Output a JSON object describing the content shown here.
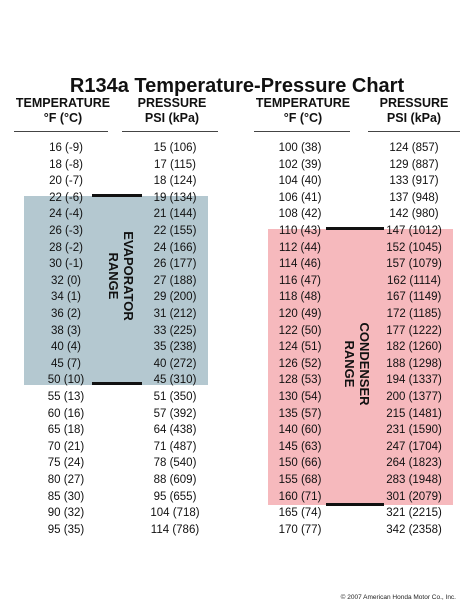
{
  "title": "R134a Temperature-Pressure Chart",
  "headers": {
    "temp_label": "TEMPERATURE",
    "temp_units": "°F (°C)",
    "press_label": "PRESSURE",
    "press_units": "PSI (kPa)"
  },
  "evaporator_label": "EVAPORATOR\nRANGE",
  "condenser_label": "CONDENSER\nRANGE",
  "colors": {
    "evaporator_band": "#b4c8d0",
    "condenser_band": "#f6b9bd"
  },
  "left_table": [
    [
      "16 (-9)",
      "15 (106)"
    ],
    [
      "18 (-8)",
      "17 (115)"
    ],
    [
      "20 (-7)",
      "18 (124)"
    ],
    [
      "22 (-6)",
      "19 (134)"
    ],
    [
      "24 (-4)",
      "21 (144)"
    ],
    [
      "26 (-3)",
      "22 (155)"
    ],
    [
      "28 (-2)",
      "24 (166)"
    ],
    [
      "30 (-1)",
      "26 (177)"
    ],
    [
      "32 (0)",
      "27 (188)"
    ],
    [
      "34 (1)",
      "29 (200)"
    ],
    [
      "36 (2)",
      "31 (212)"
    ],
    [
      "38 (3)",
      "33 (225)"
    ],
    [
      "40 (4)",
      "35 (238)"
    ],
    [
      "45 (7)",
      "40 (272)"
    ],
    [
      "50 (10)",
      "45 (310)"
    ],
    [
      "55 (13)",
      "51 (350)"
    ],
    [
      "60 (16)",
      "57 (392)"
    ],
    [
      "65 (18)",
      "64 (438)"
    ],
    [
      "70 (21)",
      "71 (487)"
    ],
    [
      "75 (24)",
      "78 (540)"
    ],
    [
      "80 (27)",
      "88 (609)"
    ],
    [
      "85 (30)",
      "95 (655)"
    ],
    [
      "90 (32)",
      "104 (718)"
    ],
    [
      "95 (35)",
      "114 (786)"
    ]
  ],
  "right_table": [
    [
      "100 (38)",
      "124 (857)"
    ],
    [
      "102 (39)",
      "129 (887)"
    ],
    [
      "104 (40)",
      "133 (917)"
    ],
    [
      "106 (41)",
      "137 (948)"
    ],
    [
      "108 (42)",
      "142 (980)"
    ],
    [
      "110 (43)",
      "147 (1012)"
    ],
    [
      "112 (44)",
      "152 (1045)"
    ],
    [
      "114 (46)",
      "157 (1079)"
    ],
    [
      "116 (47)",
      "162 (1114)"
    ],
    [
      "118 (48)",
      "167 (1149)"
    ],
    [
      "120 (49)",
      "172 (1185)"
    ],
    [
      "122 (50)",
      "177 (1222)"
    ],
    [
      "124 (51)",
      "182 (1260)"
    ],
    [
      "126 (52)",
      "188 (1298)"
    ],
    [
      "128 (53)",
      "194 (1337)"
    ],
    [
      "130 (54)",
      "200 (1377)"
    ],
    [
      "135 (57)",
      "215 (1481)"
    ],
    [
      "140 (60)",
      "231 (1590)"
    ],
    [
      "145 (63)",
      "247 (1704)"
    ],
    [
      "150 (66)",
      "264 (1823)"
    ],
    [
      "155 (68)",
      "283 (1948)"
    ],
    [
      "160 (71)",
      "301 (2079)"
    ],
    [
      "165 (74)",
      "321 (2215)"
    ],
    [
      "170 (77)",
      "342 (2358)"
    ]
  ],
  "copyright": "© 2007 American Honda Motor Co., Inc."
}
